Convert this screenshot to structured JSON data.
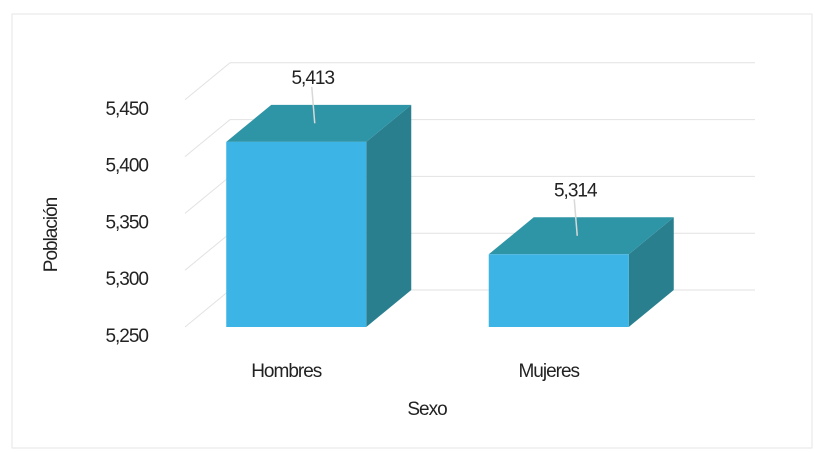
{
  "chart_data": {
    "type": "bar3d",
    "categories": [
      "Hombres",
      "Mujeres"
    ],
    "values": [
      5413,
      5314
    ],
    "value_labels": [
      "5,413",
      "5,314"
    ],
    "color": "#3cb4e6",
    "xlabel": "Sexo",
    "ylabel": "Población",
    "ylim": [
      5250,
      5500
    ],
    "yticks": [
      {
        "value": 5250,
        "label": "5,250"
      },
      {
        "value": 5300,
        "label": "5,300"
      },
      {
        "value": 5350,
        "label": "5,350"
      },
      {
        "value": 5400,
        "label": "5,400"
      },
      {
        "value": 5450,
        "label": "5,450"
      }
    ],
    "grid": true
  }
}
